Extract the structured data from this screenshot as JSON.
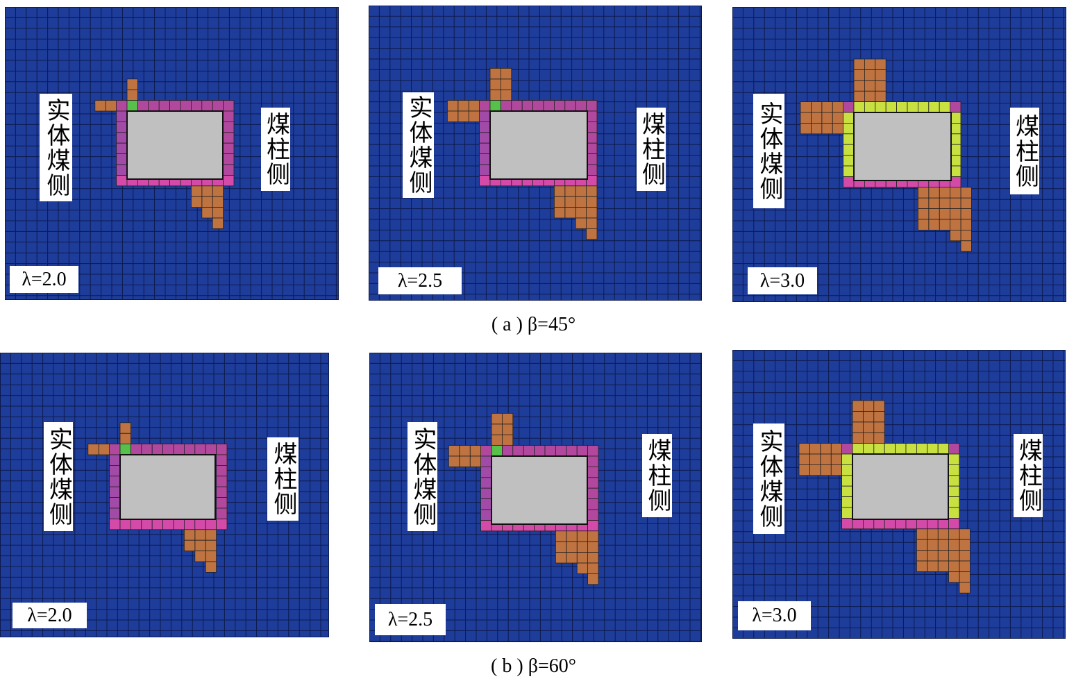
{
  "panels": [
    {
      "left_label": "实体煤侧",
      "right_label": "煤柱侧",
      "lambda_label": "λ=2.0"
    },
    {
      "left_label": "实体煤侧",
      "right_label": "煤柱侧",
      "lambda_label": "λ=2.5"
    },
    {
      "left_label": "实体煤侧",
      "right_label": "煤柱侧",
      "lambda_label": "λ=3.0"
    },
    {
      "left_label": "实体煤侧",
      "right_label": "煤柱侧",
      "lambda_label": "λ=2.0"
    },
    {
      "left_label": "实体煤侧",
      "right_label": "煤柱侧",
      "lambda_label": "λ=2.5"
    },
    {
      "left_label": "实体煤侧",
      "right_label": "煤柱侧",
      "lambda_label": "λ=3.0"
    }
  ],
  "captions": [
    "( a ) β=45°",
    "( b ) β=60°"
  ]
}
